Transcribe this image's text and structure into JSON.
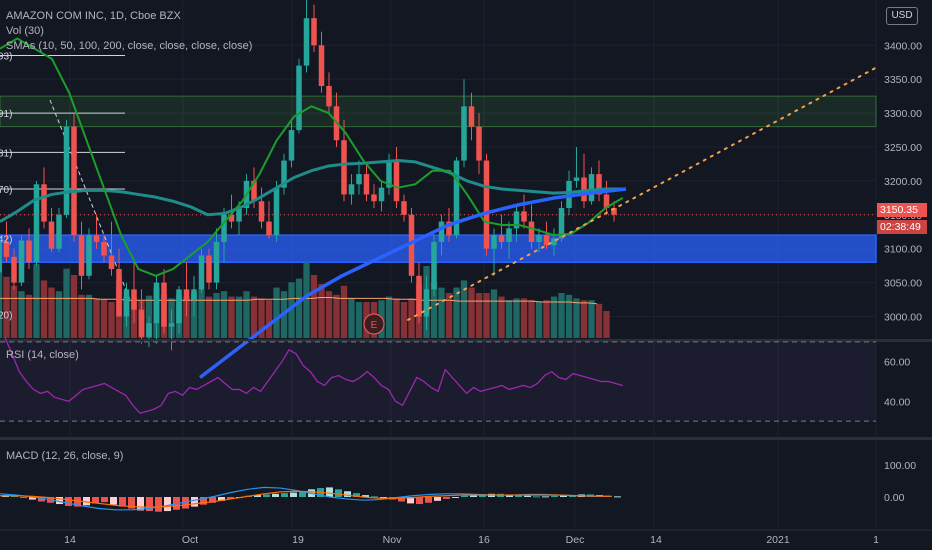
{
  "legends": {
    "main": "AMAZON COM INC, 1D, Cboe BZX",
    "volume": "Vol (30)",
    "sma": "SMAs (10, 50, 100, 200, close, close, close, close)",
    "rsi": "RSI (14, close)",
    "macd": "MACD (12, 26, close, 9)"
  },
  "currency_button": "USD",
  "last_price": "3150.35",
  "countdown": "02:38:49",
  "earnings_marker": "E",
  "left_cut_labels": [
    "93)",
    "91)",
    "31)",
    "70)",
    "42)",
    "20)"
  ],
  "colors": {
    "background": "#131722",
    "up": "#26a69a",
    "down": "#ef5350",
    "sma_blue": "#2962ff",
    "sma_green": "#1b9e2c",
    "sma_teal": "#1f8c8c",
    "trend": "#f2a14a",
    "zone_blue": "#2962ff",
    "zone_green": "#4caf50",
    "rsi_line": "#9c27b0"
  },
  "chart_data": [
    {
      "type": "candlestick",
      "title": "AMAZON COM INC, 1D, Cboe BZX",
      "x_tick_labels": [
        "14",
        "Oct",
        "19",
        "Nov",
        "16",
        "Dec",
        "14",
        "2021",
        "1"
      ],
      "y_tick_labels": [
        "3400.00",
        "3350.00",
        "3300.00",
        "3250.00",
        "3200.00",
        "3150.00",
        "3100.00",
        "3050.00",
        "3000.00"
      ],
      "ylim": [
        2955,
        3455
      ],
      "candles": [
        {
          "o": 3065,
          "h": 3118,
          "l": 3035,
          "c": 3110
        },
        {
          "o": 3110,
          "h": 3140,
          "l": 3080,
          "c": 3088
        },
        {
          "o": 3088,
          "h": 3100,
          "l": 3040,
          "c": 3050
        },
        {
          "o": 3050,
          "h": 3120,
          "l": 3045,
          "c": 3112
        },
        {
          "o": 3112,
          "h": 3130,
          "l": 3070,
          "c": 3080
        },
        {
          "o": 3080,
          "h": 3200,
          "l": 3075,
          "c": 3195
        },
        {
          "o": 3195,
          "h": 3220,
          "l": 3130,
          "c": 3140
        },
        {
          "o": 3140,
          "h": 3160,
          "l": 3095,
          "c": 3100
        },
        {
          "o": 3100,
          "h": 3160,
          "l": 3095,
          "c": 3150
        },
        {
          "o": 3150,
          "h": 3290,
          "l": 3145,
          "c": 3280
        },
        {
          "o": 3280,
          "h": 3300,
          "l": 3110,
          "c": 3120
        },
        {
          "o": 3120,
          "h": 3140,
          "l": 3040,
          "c": 3060
        },
        {
          "o": 3060,
          "h": 3130,
          "l": 3055,
          "c": 3120
        },
        {
          "o": 3120,
          "h": 3150,
          "l": 3100,
          "c": 3110
        },
        {
          "o": 3110,
          "h": 3120,
          "l": 3080,
          "c": 3090
        },
        {
          "o": 3090,
          "h": 3140,
          "l": 3060,
          "c": 3070
        },
        {
          "o": 3070,
          "h": 3100,
          "l": 3000,
          "c": 3000
        },
        {
          "o": 3000,
          "h": 3050,
          "l": 2985,
          "c": 3040
        },
        {
          "o": 3040,
          "h": 3080,
          "l": 2990,
          "c": 3010
        },
        {
          "o": 3010,
          "h": 3040,
          "l": 2960,
          "c": 2970
        },
        {
          "o": 2970,
          "h": 3000,
          "l": 2955,
          "c": 2990
        },
        {
          "o": 2990,
          "h": 3060,
          "l": 2960,
          "c": 3050
        },
        {
          "o": 3050,
          "h": 3070,
          "l": 2975,
          "c": 2985
        },
        {
          "o": 2985,
          "h": 3010,
          "l": 2950,
          "c": 2990
        },
        {
          "o": 2990,
          "h": 3045,
          "l": 2975,
          "c": 3040
        },
        {
          "o": 3040,
          "h": 3080,
          "l": 3000,
          "c": 3025
        },
        {
          "o": 3025,
          "h": 3060,
          "l": 3000,
          "c": 3040
        },
        {
          "o": 3040,
          "h": 3100,
          "l": 3035,
          "c": 3090
        },
        {
          "o": 3090,
          "h": 3100,
          "l": 3040,
          "c": 3050
        },
        {
          "o": 3050,
          "h": 3130,
          "l": 3040,
          "c": 3110
        },
        {
          "o": 3110,
          "h": 3160,
          "l": 3080,
          "c": 3150
        },
        {
          "o": 3150,
          "h": 3180,
          "l": 3130,
          "c": 3140
        },
        {
          "o": 3140,
          "h": 3170,
          "l": 3120,
          "c": 3160
        },
        {
          "o": 3160,
          "h": 3210,
          "l": 3150,
          "c": 3200
        },
        {
          "o": 3200,
          "h": 3220,
          "l": 3160,
          "c": 3170
        },
        {
          "o": 3170,
          "h": 3190,
          "l": 3130,
          "c": 3140
        },
        {
          "o": 3140,
          "h": 3170,
          "l": 3115,
          "c": 3120
        },
        {
          "o": 3120,
          "h": 3200,
          "l": 3110,
          "c": 3190
        },
        {
          "o": 3190,
          "h": 3240,
          "l": 3180,
          "c": 3230
        },
        {
          "o": 3230,
          "h": 3290,
          "l": 3220,
          "c": 3275
        },
        {
          "o": 3275,
          "h": 3380,
          "l": 3270,
          "c": 3370
        },
        {
          "o": 3370,
          "h": 3470,
          "l": 3360,
          "c": 3440
        },
        {
          "o": 3440,
          "h": 3460,
          "l": 3390,
          "c": 3400
        },
        {
          "o": 3400,
          "h": 3420,
          "l": 3330,
          "c": 3340
        },
        {
          "o": 3340,
          "h": 3360,
          "l": 3300,
          "c": 3310
        },
        {
          "o": 3310,
          "h": 3330,
          "l": 3250,
          "c": 3260
        },
        {
          "o": 3260,
          "h": 3290,
          "l": 3170,
          "c": 3180
        },
        {
          "o": 3180,
          "h": 3210,
          "l": 3165,
          "c": 3195
        },
        {
          "o": 3195,
          "h": 3230,
          "l": 3180,
          "c": 3210
        },
        {
          "o": 3210,
          "h": 3225,
          "l": 3170,
          "c": 3180
        },
        {
          "o": 3180,
          "h": 3195,
          "l": 3160,
          "c": 3170
        },
        {
          "o": 3170,
          "h": 3200,
          "l": 3155,
          "c": 3190
        },
        {
          "o": 3190,
          "h": 3240,
          "l": 3180,
          "c": 3230
        },
        {
          "o": 3230,
          "h": 3250,
          "l": 3160,
          "c": 3170
        },
        {
          "o": 3170,
          "h": 3180,
          "l": 3140,
          "c": 3150
        },
        {
          "o": 3150,
          "h": 3160,
          "l": 3050,
          "c": 3060
        },
        {
          "o": 3060,
          "h": 3080,
          "l": 2990,
          "c": 3000
        },
        {
          "o": 3000,
          "h": 3060,
          "l": 2980,
          "c": 3040
        },
        {
          "o": 3040,
          "h": 3120,
          "l": 3030,
          "c": 3110
        },
        {
          "o": 3110,
          "h": 3150,
          "l": 3090,
          "c": 3140
        },
        {
          "o": 3140,
          "h": 3160,
          "l": 3110,
          "c": 3120
        },
        {
          "o": 3120,
          "h": 3235,
          "l": 3115,
          "c": 3230
        },
        {
          "o": 3230,
          "h": 3350,
          "l": 3220,
          "c": 3310
        },
        {
          "o": 3310,
          "h": 3330,
          "l": 3260,
          "c": 3280
        },
        {
          "o": 3280,
          "h": 3300,
          "l": 3210,
          "c": 3230
        },
        {
          "o": 3230,
          "h": 3240,
          "l": 3090,
          "c": 3100
        },
        {
          "o": 3100,
          "h": 3130,
          "l": 3060,
          "c": 3120
        },
        {
          "o": 3120,
          "h": 3150,
          "l": 3100,
          "c": 3110
        },
        {
          "o": 3110,
          "h": 3140,
          "l": 3085,
          "c": 3130
        },
        {
          "o": 3130,
          "h": 3165,
          "l": 3110,
          "c": 3155
        },
        {
          "o": 3155,
          "h": 3180,
          "l": 3130,
          "c": 3140
        },
        {
          "o": 3140,
          "h": 3165,
          "l": 3100,
          "c": 3110
        },
        {
          "o": 3110,
          "h": 3130,
          "l": 3095,
          "c": 3120
        },
        {
          "o": 3120,
          "h": 3140,
          "l": 3100,
          "c": 3105
        },
        {
          "o": 3105,
          "h": 3130,
          "l": 3090,
          "c": 3115
        },
        {
          "o": 3115,
          "h": 3170,
          "l": 3110,
          "c": 3160
        },
        {
          "o": 3160,
          "h": 3215,
          "l": 3150,
          "c": 3200
        },
        {
          "o": 3200,
          "h": 3250,
          "l": 3190,
          "c": 3205
        },
        {
          "o": 3205,
          "h": 3240,
          "l": 3160,
          "c": 3170
        },
        {
          "o": 3170,
          "h": 3220,
          "l": 3165,
          "c": 3210
        },
        {
          "o": 3210,
          "h": 3230,
          "l": 3170,
          "c": 3180
        },
        {
          "o": 3180,
          "h": 3200,
          "l": 3150,
          "c": 3160
        },
        {
          "o": 3160,
          "h": 3170,
          "l": 3140,
          "c": 3150
        }
      ],
      "sma_teal": [
        3140,
        3155,
        3172,
        3180,
        3184,
        3186,
        3186,
        3184,
        3180,
        3176,
        3170,
        3162,
        3150,
        3152,
        3162,
        3175,
        3190,
        3205,
        3215,
        3222,
        3225,
        3226,
        3228,
        3230,
        3228,
        3220,
        3212,
        3200,
        3192,
        3188,
        3186,
        3184,
        3182,
        3183,
        3186,
        3188,
        3188
      ],
      "sma_green": [
        3395,
        3410,
        3395,
        3380,
        3330,
        3260,
        3190,
        3120,
        3070,
        3060,
        3070,
        3090,
        3110,
        3140,
        3170,
        3210,
        3260,
        3295,
        3310,
        3300,
        3270,
        3230,
        3200,
        3190,
        3195,
        3215,
        3215,
        3180,
        3140,
        3135,
        3135,
        3128,
        3120,
        3122,
        3138,
        3160,
        3175
      ],
      "sma_blue": [
        2910,
        2950,
        2990,
        3030,
        3060,
        3085,
        3110,
        3135,
        3152,
        3165,
        3175,
        3182,
        3188
      ],
      "price_lines": [
        3385,
        3300,
        3242,
        3188,
        3150
      ],
      "zone_blue": [
        3080,
        3120
      ],
      "zone_green": [
        3280,
        3325
      ],
      "trendline": {
        "from": [
          28,
          2995
        ],
        "to": [
          68,
          3367
        ]
      },
      "last_price": 3150.35
    },
    {
      "type": "bar",
      "title": "Vol (30)",
      "values": [
        88,
        68,
        58,
        52,
        48,
        82,
        64,
        56,
        52,
        77,
        70,
        48,
        48,
        44,
        43,
        40,
        64,
        46,
        44,
        42,
        47,
        56,
        48,
        44,
        48,
        46,
        50,
        54,
        46,
        50,
        52,
        46,
        46,
        52,
        46,
        44,
        42,
        56,
        52,
        62,
        66,
        84,
        70,
        60,
        52,
        48,
        58,
        44,
        40,
        40,
        40,
        42,
        46,
        44,
        40,
        44,
        60,
        80,
        62,
        56,
        50,
        56,
        64,
        56,
        50,
        50,
        54,
        46,
        42,
        44,
        44,
        42,
        40,
        42,
        46,
        50,
        48,
        44,
        42,
        42,
        38,
        30
      ],
      "ma": [
        44,
        44,
        44,
        44,
        44,
        44,
        44,
        44,
        44,
        44,
        44,
        43,
        43,
        43,
        42,
        42,
        42,
        42,
        42,
        42,
        42,
        42,
        42,
        42,
        42,
        42,
        42,
        42,
        43,
        43,
        43,
        43,
        44,
        44,
        44,
        45,
        45,
        44,
        44,
        44,
        44,
        44,
        44,
        43,
        43,
        43,
        42,
        42,
        42,
        42,
        41,
        41,
        41,
        41,
        41,
        41,
        41,
        41,
        41,
        40,
        40,
        40,
        40,
        39,
        39,
        38
      ]
    },
    {
      "type": "line",
      "title": "RSI (14, close)",
      "y_tick_labels": [
        "60.00",
        "40.00"
      ],
      "ylim": [
        25,
        75
      ],
      "bands": [
        70,
        30
      ],
      "values": [
        72,
        64,
        55,
        50,
        46,
        44,
        45,
        42,
        41,
        40,
        43,
        46,
        47,
        48,
        49,
        47,
        45,
        43,
        38,
        34,
        35,
        36,
        38,
        44,
        45,
        43,
        47,
        46,
        48,
        50,
        52,
        49,
        46,
        46,
        44,
        47,
        45,
        50,
        55,
        60,
        66,
        64,
        58,
        55,
        50,
        48,
        52,
        53,
        51,
        50,
        52,
        55,
        52,
        48,
        46,
        40,
        38,
        45,
        52,
        50,
        47,
        45,
        56,
        52,
        48,
        44,
        47,
        45,
        46,
        47,
        48,
        46,
        47,
        48,
        47,
        49,
        53,
        55,
        52,
        51,
        54,
        53,
        52,
        51,
        50,
        50,
        49,
        48
      ]
    },
    {
      "type": "bar",
      "title": "MACD (12, 26, close, 9)",
      "y_tick_labels": [
        "100.00",
        "0.00"
      ],
      "ylim": [
        -60,
        140
      ],
      "histogram": [
        6,
        4,
        -2,
        -8,
        -14,
        -18,
        -22,
        -28,
        -30,
        -26,
        -20,
        -16,
        -24,
        -30,
        -36,
        -42,
        -44,
        -46,
        -44,
        -40,
        -36,
        -30,
        -24,
        -18,
        -12,
        -6,
        0,
        4,
        6,
        8,
        10,
        12,
        14,
        18,
        24,
        28,
        30,
        24,
        18,
        12,
        6,
        2,
        -2,
        -8,
        -14,
        -20,
        -22,
        -18,
        -12,
        -6,
        0,
        4,
        6,
        8,
        10,
        10,
        8,
        6,
        4,
        2,
        2,
        4,
        6,
        6,
        8,
        8,
        6,
        4,
        2
      ],
      "macd_line": [
        10,
        6,
        0,
        -8,
        -18,
        -28,
        -36,
        -40,
        -40,
        -36,
        -28,
        -18,
        -8,
        2,
        14,
        24,
        30,
        28,
        20,
        10,
        0,
        -6,
        -10,
        -8,
        -2,
        4,
        8,
        10,
        10,
        8,
        6,
        6,
        8,
        8,
        6,
        4,
        2,
        2
      ],
      "signal_line": [
        4,
        4,
        2,
        -2,
        -8,
        -14,
        -20,
        -26,
        -30,
        -32,
        -30,
        -26,
        -20,
        -14,
        -6,
        2,
        10,
        16,
        18,
        16,
        12,
        6,
        0,
        -4,
        -4,
        -2,
        2,
        4,
        6,
        6,
        6,
        6,
        6,
        6,
        6,
        4,
        3,
        2
      ]
    }
  ]
}
